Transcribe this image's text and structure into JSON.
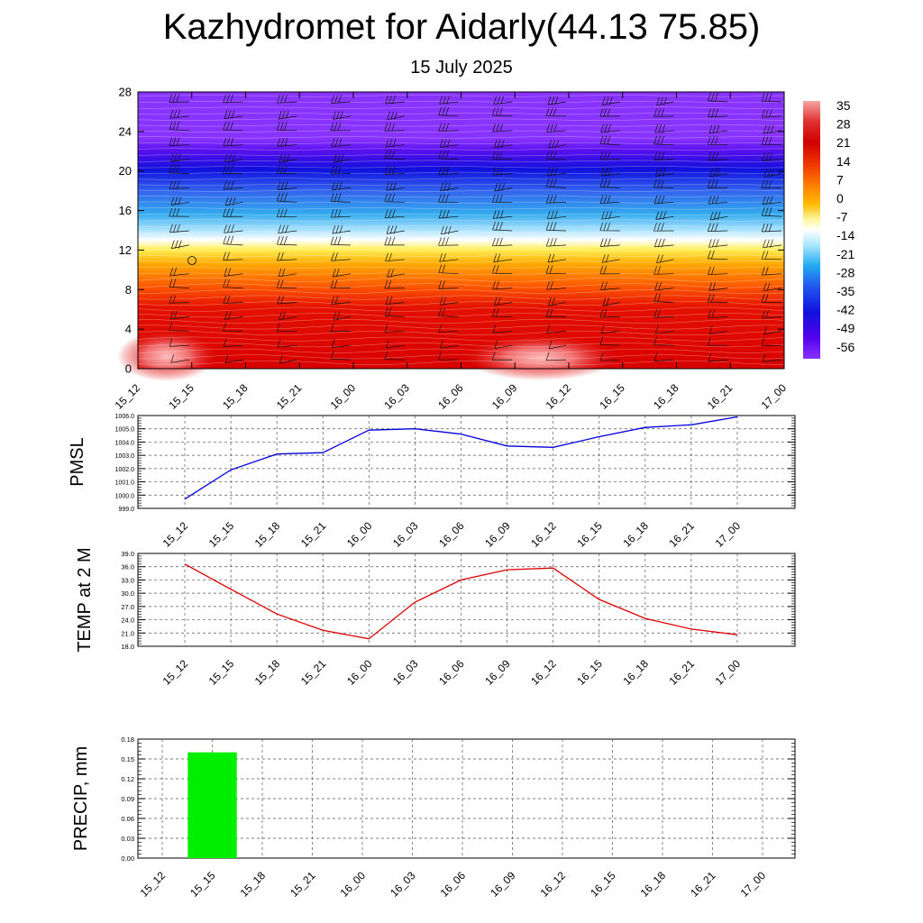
{
  "header": {
    "title": "Kazhydromet for Aidarly(44.13 75.85)",
    "date": "15 July 2025"
  },
  "time_labels": [
    "15_12",
    "15_15",
    "15_18",
    "15_21",
    "16_00",
    "16_03",
    "16_06",
    "16_09",
    "16_12",
    "16_15",
    "16_18",
    "16_21",
    "17_00"
  ],
  "colors": {
    "pmsl_line": "#0000dd",
    "temp_line": "#dd0000",
    "precip_bar": "#00ee00",
    "colorbar_stops": [
      "#f5a5a5",
      "#e03030",
      "#d00000",
      "#ee3300",
      "#ff7700",
      "#ffbb00",
      "#fff7a0",
      "#ffffff",
      "#aae6ff",
      "#22aaee",
      "#2255ee",
      "#1111dd",
      "#5500ee",
      "#8833ff"
    ]
  },
  "chart_data": [
    {
      "type": "heatmap",
      "title": "",
      "description_fields": "temperature contours with wind barbs by height",
      "x": [
        "15_12",
        "15_15",
        "15_18",
        "15_21",
        "16_00",
        "16_03",
        "16_06",
        "16_09",
        "16_12",
        "16_15",
        "16_18",
        "16_21",
        "17_00"
      ],
      "ylim": [
        0,
        28
      ],
      "yticks": [
        "0",
        "4",
        "8",
        "12",
        "16",
        "20",
        "24",
        "28"
      ],
      "colorbar_labels": [
        "35",
        "28",
        "21",
        "14",
        "7",
        "0",
        "-7",
        "-14",
        "-21",
        "-28",
        "-35",
        "-42",
        "-49",
        "-56"
      ]
    },
    {
      "type": "line",
      "ylabel": "PMSL",
      "x": [
        "15_12",
        "15_15",
        "15_18",
        "15_21",
        "16_00",
        "16_03",
        "16_06",
        "16_09",
        "16_12",
        "16_15",
        "16_18",
        "16_21",
        "17_00"
      ],
      "values": [
        999.7,
        1001.9,
        1003.1,
        1003.2,
        1004.9,
        1005.0,
        1004.6,
        1003.7,
        1003.6,
        1004.4,
        1005.1,
        1005.3,
        1005.9
      ],
      "ylim": [
        999.0,
        1006.0
      ],
      "yticks": [
        "999.0",
        "1000.0",
        "1001.0",
        "1002.0",
        "1003.0",
        "1004.0",
        "1005.0",
        "1006.0"
      ]
    },
    {
      "type": "line",
      "ylabel": "TEMP at 2 M",
      "x": [
        "15_12",
        "15_15",
        "15_18",
        "15_21",
        "16_00",
        "16_03",
        "16_06",
        "16_09",
        "16_12",
        "16_15",
        "16_18",
        "16_21",
        "17_00"
      ],
      "values": [
        36.6,
        30.9,
        25.3,
        21.6,
        19.7,
        28.0,
        33.0,
        35.3,
        35.7,
        28.6,
        24.3,
        21.9,
        20.6
      ],
      "ylim": [
        18.0,
        39.0
      ],
      "yticks": [
        "18.0",
        "21.0",
        "24.0",
        "27.0",
        "30.0",
        "33.0",
        "36.0",
        "39.0"
      ]
    },
    {
      "type": "bar",
      "ylabel": "PRECIP, mm",
      "categories": [
        "15_12",
        "15_15",
        "15_18",
        "15_21",
        "16_00",
        "16_03",
        "16_06",
        "16_09",
        "16_12",
        "16_15",
        "16_18",
        "16_21",
        "17_00"
      ],
      "values": [
        0,
        0.16,
        0,
        0,
        0,
        0,
        0,
        0,
        0,
        0,
        0,
        0,
        0
      ],
      "ylim": [
        0,
        0.18
      ],
      "yticks": [
        "0.00",
        "0.03",
        "0.06",
        "0.09",
        "0.12",
        "0.15",
        "0.18"
      ]
    }
  ]
}
